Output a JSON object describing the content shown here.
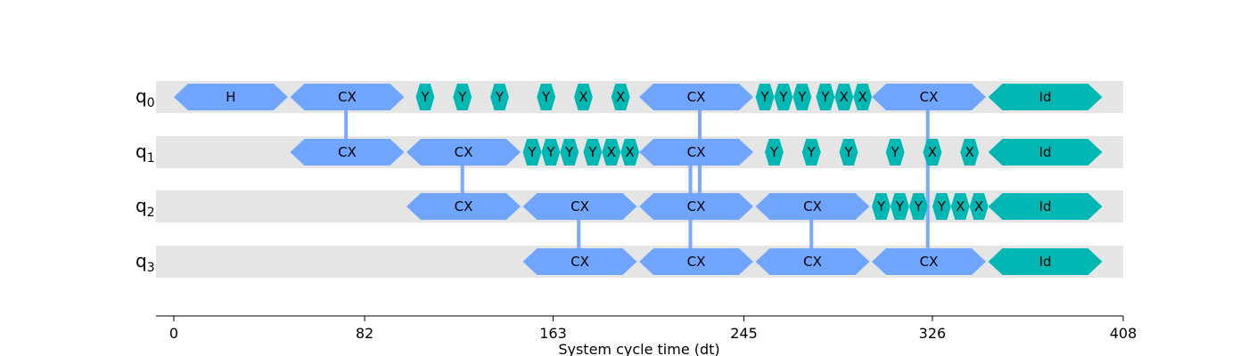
{
  "chart_data": {
    "type": "timeline",
    "x_axis": {
      "label": "System cycle time (dt)",
      "range": [
        0,
        408
      ],
      "ticks": [
        0,
        82,
        163,
        245,
        326,
        408
      ]
    },
    "qubits": [
      {
        "name": "q",
        "index": "0"
      },
      {
        "name": "q",
        "index": "1"
      },
      {
        "name": "q",
        "index": "2"
      },
      {
        "name": "q",
        "index": "3"
      }
    ],
    "gates": [
      {
        "qubit": 0,
        "label": "H",
        "kind": "h",
        "start": 0,
        "end": 49
      },
      {
        "qubit": 0,
        "label": "CX",
        "kind": "cx",
        "start": 50,
        "end": 99
      },
      {
        "qubit": 0,
        "label": "Y",
        "kind": "1q",
        "start": 104,
        "end": 112
      },
      {
        "qubit": 0,
        "label": "Y",
        "kind": "1q",
        "start": 120,
        "end": 128
      },
      {
        "qubit": 0,
        "label": "Y",
        "kind": "1q",
        "start": 136,
        "end": 144
      },
      {
        "qubit": 0,
        "label": "Y",
        "kind": "1q",
        "start": 156,
        "end": 164
      },
      {
        "qubit": 0,
        "label": "X",
        "kind": "1q",
        "start": 172,
        "end": 180
      },
      {
        "qubit": 0,
        "label": "X",
        "kind": "1q",
        "start": 188,
        "end": 196
      },
      {
        "qubit": 0,
        "label": "CX",
        "kind": "cx",
        "start": 200,
        "end": 249
      },
      {
        "qubit": 0,
        "label": "Y",
        "kind": "1q",
        "start": 250,
        "end": 258
      },
      {
        "qubit": 0,
        "label": "Y",
        "kind": "1q",
        "start": 258,
        "end": 266
      },
      {
        "qubit": 0,
        "label": "Y",
        "kind": "1q",
        "start": 266,
        "end": 274
      },
      {
        "qubit": 0,
        "label": "Y",
        "kind": "1q",
        "start": 276,
        "end": 284
      },
      {
        "qubit": 0,
        "label": "X",
        "kind": "1q",
        "start": 284,
        "end": 292
      },
      {
        "qubit": 0,
        "label": "X",
        "kind": "1q",
        "start": 292,
        "end": 300
      },
      {
        "qubit": 0,
        "label": "CX",
        "kind": "cx",
        "start": 300,
        "end": 349
      },
      {
        "qubit": 0,
        "label": "Id",
        "kind": "1q",
        "start": 350,
        "end": 399
      },
      {
        "qubit": 1,
        "label": "CX",
        "kind": "cx",
        "start": 50,
        "end": 99
      },
      {
        "qubit": 1,
        "label": "CX",
        "kind": "cx",
        "start": 100,
        "end": 149
      },
      {
        "qubit": 1,
        "label": "Y",
        "kind": "1q",
        "start": 150,
        "end": 158
      },
      {
        "qubit": 1,
        "label": "Y",
        "kind": "1q",
        "start": 158,
        "end": 166
      },
      {
        "qubit": 1,
        "label": "Y",
        "kind": "1q",
        "start": 166,
        "end": 174
      },
      {
        "qubit": 1,
        "label": "Y",
        "kind": "1q",
        "start": 176,
        "end": 184
      },
      {
        "qubit": 1,
        "label": "X",
        "kind": "1q",
        "start": 184,
        "end": 192
      },
      {
        "qubit": 1,
        "label": "X",
        "kind": "1q",
        "start": 192,
        "end": 200
      },
      {
        "qubit": 1,
        "label": "CX",
        "kind": "cx",
        "start": 200,
        "end": 249
      },
      {
        "qubit": 1,
        "label": "Y",
        "kind": "1q",
        "start": 254,
        "end": 262
      },
      {
        "qubit": 1,
        "label": "Y",
        "kind": "1q",
        "start": 270,
        "end": 278
      },
      {
        "qubit": 1,
        "label": "Y",
        "kind": "1q",
        "start": 286,
        "end": 294
      },
      {
        "qubit": 1,
        "label": "Y",
        "kind": "1q",
        "start": 306,
        "end": 314
      },
      {
        "qubit": 1,
        "label": "X",
        "kind": "1q",
        "start": 322,
        "end": 330
      },
      {
        "qubit": 1,
        "label": "X",
        "kind": "1q",
        "start": 338,
        "end": 346
      },
      {
        "qubit": 1,
        "label": "Id",
        "kind": "1q",
        "start": 350,
        "end": 399
      },
      {
        "qubit": 2,
        "label": "CX",
        "kind": "cx",
        "start": 100,
        "end": 149
      },
      {
        "qubit": 2,
        "label": "CX",
        "kind": "cx",
        "start": 150,
        "end": 199
      },
      {
        "qubit": 2,
        "label": "CX",
        "kind": "cx",
        "start": 200,
        "end": 249
      },
      {
        "qubit": 2,
        "label": "CX",
        "kind": "cx",
        "start": 250,
        "end": 299
      },
      {
        "qubit": 2,
        "label": "Y",
        "kind": "1q",
        "start": 300,
        "end": 308
      },
      {
        "qubit": 2,
        "label": "Y",
        "kind": "1q",
        "start": 308,
        "end": 316
      },
      {
        "qubit": 2,
        "label": "Y",
        "kind": "1q",
        "start": 316,
        "end": 324
      },
      {
        "qubit": 2,
        "label": "Y",
        "kind": "1q",
        "start": 326,
        "end": 334
      },
      {
        "qubit": 2,
        "label": "X",
        "kind": "1q",
        "start": 334,
        "end": 342
      },
      {
        "qubit": 2,
        "label": "X",
        "kind": "1q",
        "start": 342,
        "end": 350
      },
      {
        "qubit": 2,
        "label": "Id",
        "kind": "1q",
        "start": 350,
        "end": 399
      },
      {
        "qubit": 3,
        "label": "CX",
        "kind": "cx",
        "start": 150,
        "end": 199
      },
      {
        "qubit": 3,
        "label": "CX",
        "kind": "cx",
        "start": 200,
        "end": 249
      },
      {
        "qubit": 3,
        "label": "CX",
        "kind": "cx",
        "start": 250,
        "end": 299
      },
      {
        "qubit": 3,
        "label": "CX",
        "kind": "cx",
        "start": 300,
        "end": 349
      },
      {
        "qubit": 3,
        "label": "Id",
        "kind": "1q",
        "start": 350,
        "end": 399
      }
    ],
    "links": [
      {
        "from_qubit": 0,
        "to_qubit": 1,
        "time": 74
      },
      {
        "from_qubit": 1,
        "to_qubit": 2,
        "time": 124
      },
      {
        "from_qubit": 2,
        "to_qubit": 3,
        "time": 174
      },
      {
        "from_qubit": 1,
        "to_qubit": 3,
        "time": 222
      },
      {
        "from_qubit": 0,
        "to_qubit": 2,
        "time": 226
      },
      {
        "from_qubit": 2,
        "to_qubit": 3,
        "time": 274
      },
      {
        "from_qubit": 0,
        "to_qubit": 3,
        "time": 324
      }
    ],
    "colors": {
      "lane": "#e5e5e5",
      "two_qubit_gate": "#6fa4ff",
      "single_qubit_gate": "#00b8b3",
      "link": "#7ba9ff"
    }
  }
}
